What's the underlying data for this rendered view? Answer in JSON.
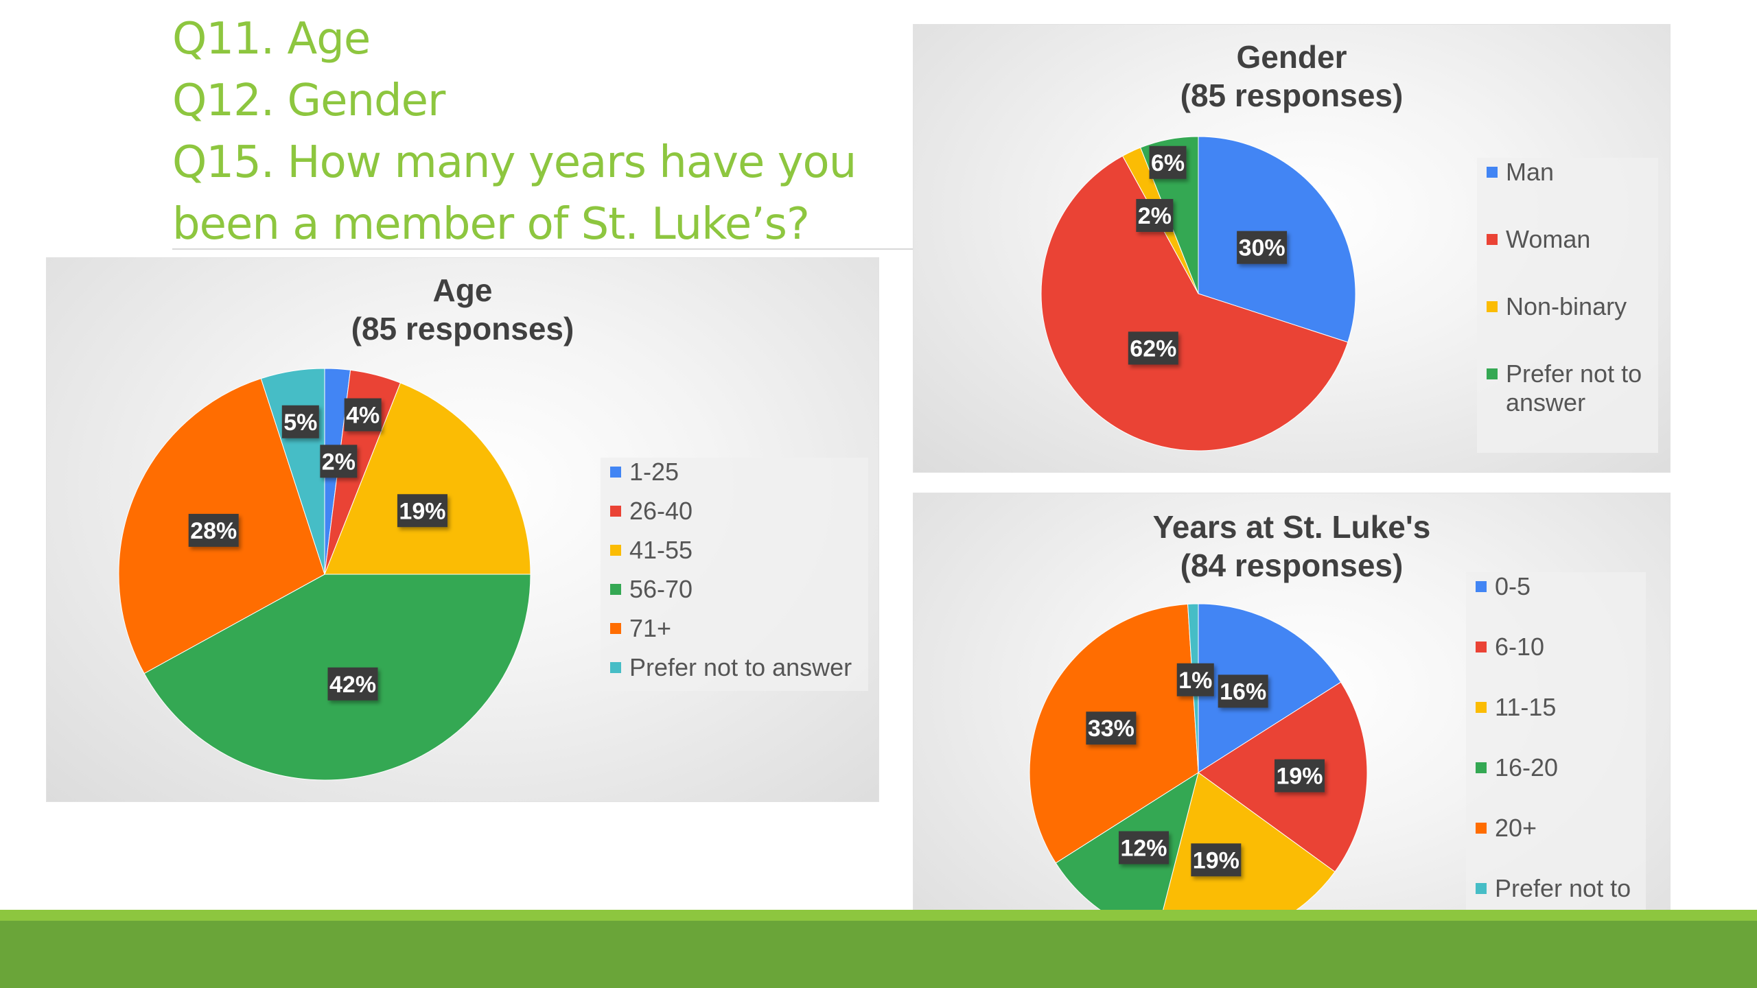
{
  "slide": {
    "title_lines": [
      "Q11. Age",
      "Q12. Gender",
      "Q15. How many years have you",
      "been a member of St. Luke’s?"
    ],
    "accent_color": "#8dc63f",
    "bottom_bar_color": "#6aa539"
  },
  "chart_data": [
    {
      "type": "pie",
      "title": "Age",
      "subtitle": "(85 responses)",
      "categories": [
        "1-25",
        "26-40",
        "41-55",
        "56-70",
        "71+",
        "Prefer not to answer"
      ],
      "values": [
        2,
        4,
        19,
        42,
        28,
        5
      ],
      "labels": [
        "2%",
        "4%",
        "19%",
        "42%",
        "28%",
        "5%"
      ],
      "colors": [
        "#4285f4",
        "#ea4335",
        "#fbbc04",
        "#34a853",
        "#ff6d01",
        "#46bdc6"
      ],
      "legend": "right"
    },
    {
      "type": "pie",
      "title": "Gender",
      "subtitle": "(85 responses)",
      "categories": [
        "Man",
        "Woman",
        "Non-binary",
        "Prefer not to answer"
      ],
      "values": [
        30,
        62,
        2,
        6
      ],
      "labels": [
        "30%",
        "62%",
        "2%",
        "6%"
      ],
      "colors": [
        "#4285f4",
        "#ea4335",
        "#fbbc04",
        "#34a853"
      ],
      "legend": "right"
    },
    {
      "type": "pie",
      "title": "Years at St. Luke's",
      "subtitle": "(84 responses)",
      "categories": [
        "0-5",
        "6-10",
        "11-15",
        "16-20",
        "20+",
        "Prefer not to answer"
      ],
      "values": [
        16,
        19,
        19,
        12,
        33,
        1
      ],
      "labels": [
        "16%",
        "19%",
        "19%",
        "12%",
        "33%",
        "1%"
      ],
      "colors": [
        "#4285f4",
        "#ea4335",
        "#fbbc04",
        "#34a853",
        "#ff6d01",
        "#46bdc6"
      ],
      "legend": "right"
    }
  ]
}
